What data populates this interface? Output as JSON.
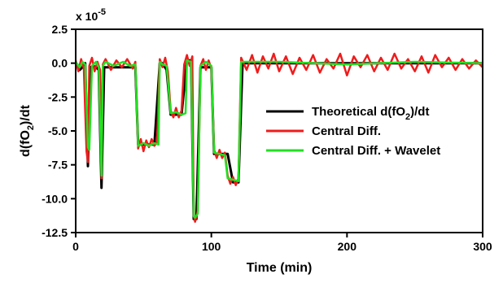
{
  "chart_data": {
    "type": "line",
    "xlabel": "Time (min)",
    "ylabel_main": "d(fO",
    "ylabel_sub": "2",
    "ylabel_tail": ")/dt",
    "scale_base": "x 10",
    "scale_exp": "-5",
    "xlim": [
      0,
      300
    ],
    "ylim": [
      -12.5,
      2.5
    ],
    "x_ticks": [
      "0",
      "100",
      "200",
      "300"
    ],
    "y_ticks": [
      "2.5",
      "0.0",
      "-2.5",
      "-5.0",
      "-7.5",
      "-10.0",
      "-12.5"
    ],
    "legend_position": "right",
    "series": [
      {
        "legend_main": "Theoretical d(fO",
        "legend_sub": "2",
        "legend_tail": ")/dt",
        "color": "#000000",
        "x": [
          0,
          3,
          5,
          7,
          9,
          11,
          13,
          15,
          17,
          19,
          21,
          24,
          28,
          35,
          40,
          44,
          46,
          52,
          58,
          62,
          64,
          67,
          70,
          72,
          78,
          82,
          85,
          87,
          89,
          92,
          96,
          100,
          102,
          106,
          112,
          116,
          120,
          123,
          150,
          200,
          250,
          300
        ],
        "y": [
          0,
          -0.5,
          -0.3,
          0,
          -7.6,
          -0.3,
          -0.2,
          -0.3,
          -0.5,
          -9.2,
          -0.3,
          -0.3,
          -0.3,
          -0.3,
          -0.3,
          -0.3,
          -6.0,
          -6.0,
          -6.0,
          0.0,
          0.0,
          -0.5,
          -3.8,
          -3.8,
          -3.8,
          0.2,
          0.2,
          -11.5,
          -11.5,
          -0.3,
          -0.3,
          -0.3,
          -6.7,
          -6.7,
          -6.7,
          -8.8,
          -8.8,
          0.0,
          0.0,
          0.0,
          0.0,
          0.0
        ]
      },
      {
        "legend_main": "Central Diff.",
        "color": "#ee1c1c",
        "x": [
          0,
          2,
          4,
          6,
          8,
          9,
          10,
          12,
          14,
          16,
          18,
          19,
          20,
          22,
          26,
          30,
          34,
          38,
          42,
          44,
          46,
          48,
          50,
          52,
          54,
          56,
          58,
          60,
          62,
          64,
          66,
          68,
          70,
          72,
          74,
          76,
          78,
          80,
          82,
          84,
          86,
          87,
          88,
          90,
          92,
          94,
          96,
          98,
          100,
          102,
          104,
          106,
          108,
          110,
          112,
          114,
          116,
          118,
          120,
          122,
          126,
          130,
          134,
          138,
          142,
          146,
          150,
          155,
          160,
          165,
          170,
          175,
          180,
          185,
          190,
          195,
          200,
          205,
          210,
          215,
          220,
          225,
          230,
          235,
          240,
          245,
          250,
          255,
          260,
          265,
          270,
          275,
          280,
          285,
          290,
          295,
          300
        ],
        "y": [
          0.2,
          -0.6,
          0.3,
          -0.4,
          -6.5,
          -7.3,
          -0.2,
          0.4,
          -0.6,
          0.1,
          -0.5,
          -8.5,
          -0.1,
          0.3,
          -0.5,
          0.2,
          -0.3,
          0.3,
          -0.4,
          0.1,
          -6.3,
          -5.6,
          -6.5,
          -5.7,
          -6.2,
          -5.6,
          -6.1,
          -5.8,
          0.3,
          -0.3,
          0.4,
          -0.6,
          -3.5,
          -4.0,
          -3.3,
          -4.0,
          -3.5,
          -0.1,
          0.6,
          -0.2,
          0.5,
          -11.2,
          -11.7,
          -10.9,
          -0.2,
          0.3,
          -0.5,
          0.2,
          -0.4,
          -6.4,
          -7.0,
          -6.4,
          -7.0,
          -6.6,
          -8.3,
          -8.9,
          -8.4,
          -9.0,
          -8.5,
          0.4,
          -0.5,
          0.6,
          -0.7,
          0.5,
          -0.4,
          0.7,
          -0.6,
          0.5,
          -0.8,
          0.4,
          -0.5,
          0.6,
          -0.7,
          0.3,
          -0.4,
          0.7,
          -0.9,
          0.5,
          -0.3,
          0.6,
          -0.6,
          0.4,
          -0.5,
          0.7,
          -0.4,
          0.3,
          -0.6,
          0.5,
          -0.7,
          0.6,
          -0.3,
          0.4,
          -0.5,
          0.3,
          -0.4,
          0.2,
          -0.3
        ]
      },
      {
        "legend_main": "Central Diff. + Wavelet",
        "color": "#22e022",
        "x": [
          0,
          3,
          5,
          7,
          9,
          10,
          12,
          15,
          17,
          19,
          20,
          22,
          28,
          35,
          40,
          44,
          46,
          50,
          54,
          58,
          61,
          62,
          64,
          67,
          70,
          74,
          78,
          81,
          82,
          85,
          87,
          88,
          90,
          92,
          96,
          100,
          102,
          106,
          110,
          112,
          116,
          120,
          122,
          150,
          200,
          250,
          300
        ],
        "y": [
          0.1,
          -0.3,
          0.1,
          -0.1,
          -6.2,
          -6.4,
          -0.2,
          0.1,
          -0.3,
          -8.3,
          -0.2,
          0.1,
          -0.2,
          0.1,
          -0.2,
          -0.1,
          -6.1,
          -5.9,
          -6.1,
          -5.9,
          -6.0,
          0.1,
          -0.1,
          -0.2,
          -3.7,
          -3.6,
          -3.8,
          -3.7,
          0.2,
          0.1,
          -11.3,
          -11.4,
          -11.1,
          -0.2,
          0.1,
          -0.2,
          -6.6,
          -6.7,
          -6.8,
          -8.5,
          -8.6,
          -8.7,
          0.1,
          0.1,
          -0.1,
          0.1,
          0.0
        ]
      }
    ]
  }
}
